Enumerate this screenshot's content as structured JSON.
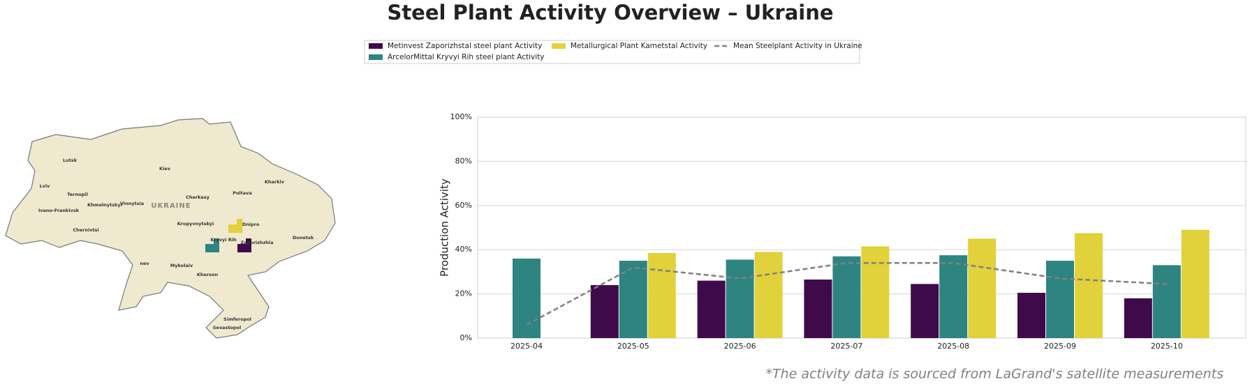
{
  "chart_data": {
    "type": "bar",
    "title": "Steel Plant Activity Overview – Ukraine",
    "y_label": "Production Activity",
    "categories": [
      "2025-04",
      "2025-05",
      "2025-06",
      "2025-07",
      "2025-08",
      "2025-09",
      "2025-10"
    ],
    "series": [
      {
        "name": "Metinvest Zaporizhstal steel plant Activity",
        "color": "#3f0a4a",
        "values": [
          null,
          24,
          26,
          26.5,
          24.5,
          20.5,
          18
        ]
      },
      {
        "name": "ArcelorMittal Kryvyi Rih steel plant Activity",
        "color": "#2e8480",
        "values": [
          36,
          35,
          35.5,
          37,
          37.5,
          35,
          33
        ]
      },
      {
        "name": "Metallurgical Plant Kametstal Activity",
        "color": "#e1d13b",
        "values": [
          null,
          38.5,
          39,
          41.5,
          45,
          47.5,
          49
        ]
      },
      {
        "name": "Mean Steelplant Activity in Ukraine",
        "color": "#808080",
        "type": "line",
        "dashed": true,
        "values": [
          6,
          32,
          27,
          34,
          34,
          27,
          24.5
        ]
      }
    ],
    "ylim": [
      0,
      100
    ],
    "yticks": [
      {
        "value": 0,
        "label": "0%"
      },
      {
        "value": 20,
        "label": "20%"
      },
      {
        "value": 40,
        "label": "40%"
      },
      {
        "value": 60,
        "label": "60%"
      },
      {
        "value": 80,
        "label": "80%"
      },
      {
        "value": 100,
        "label": "100%"
      }
    ],
    "grid": true,
    "legend": "top"
  },
  "note": "*The activity data is sourced from LaGrand's satellite measurements",
  "map": {
    "labels": [
      "Lutsk",
      "Kiev",
      "Kharkiv",
      "Lviv",
      "Ternopil",
      "Poltava",
      "Cherkasy",
      "Khmelnytskyi",
      "Vinnytsia",
      "UKRAINE",
      "Ivano-Frankivsk",
      "Kropyvnytskyi",
      "Dnipro",
      "Chernivtsi",
      "Kryvyi Rih",
      "Zaporizhzhia",
      "Donetsk",
      "Mykolaiv",
      "Kherson",
      "Simferopol",
      "Sevastopol",
      "nev"
    ]
  }
}
